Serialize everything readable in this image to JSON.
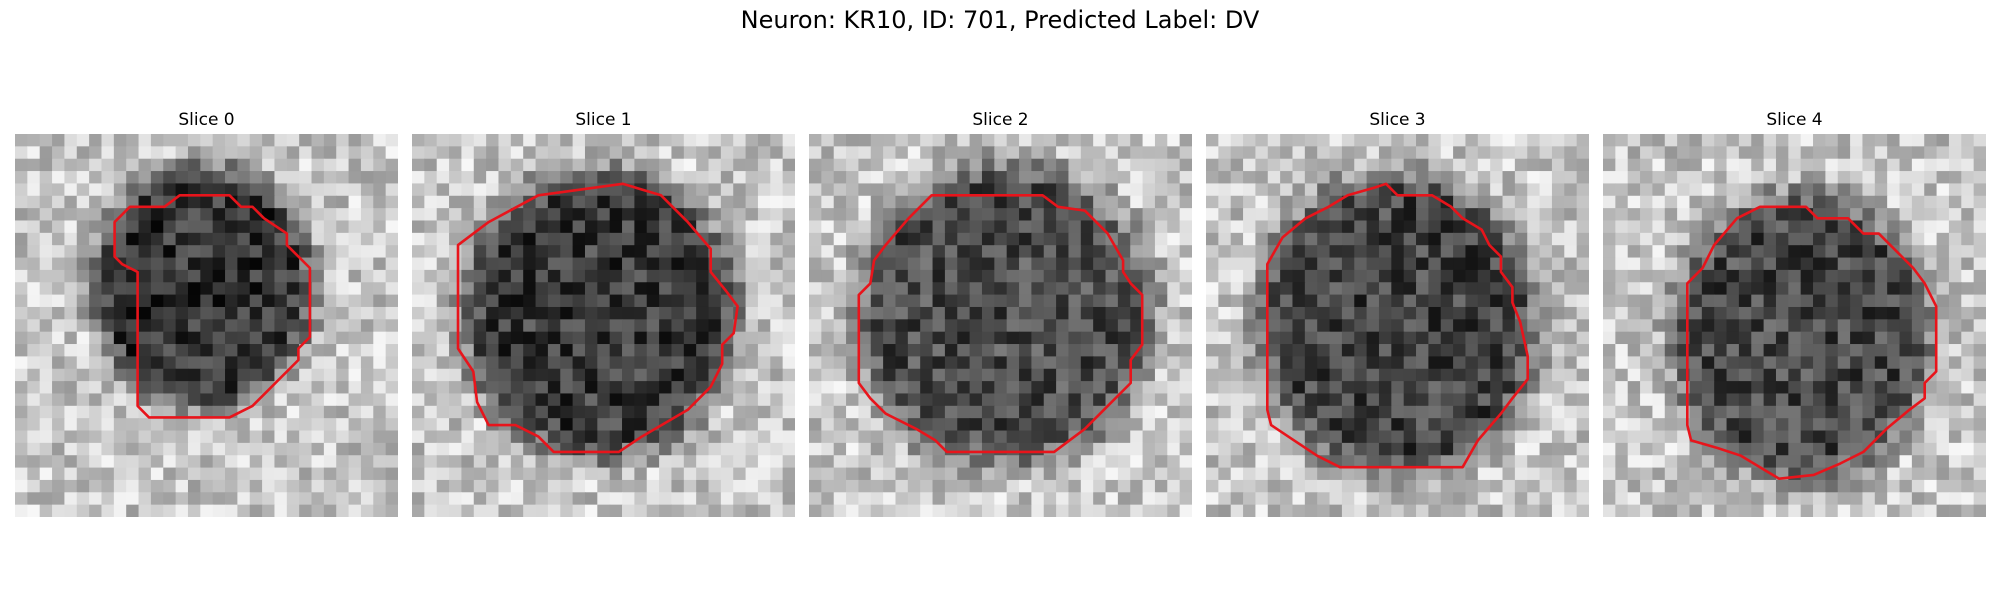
{
  "figure": {
    "title": "Neuron: KR10, ID: 701, Predicted Label: DV"
  },
  "colors": {
    "contour": "#e8141b",
    "background": "#ffffff"
  },
  "panels": [
    {
      "title": "Slice 0",
      "seed": 11,
      "center": [
        0.49,
        0.4
      ],
      "radius": [
        0.29,
        0.32
      ],
      "darkness": 0.58,
      "contour": [
        [
          0.43,
          0.16
        ],
        [
          0.56,
          0.16
        ],
        [
          0.59,
          0.19
        ],
        [
          0.62,
          0.19
        ],
        [
          0.65,
          0.22
        ],
        [
          0.71,
          0.26
        ],
        [
          0.71,
          0.29
        ],
        [
          0.77,
          0.35
        ],
        [
          0.77,
          0.53
        ],
        [
          0.74,
          0.56
        ],
        [
          0.74,
          0.59
        ],
        [
          0.65,
          0.68
        ],
        [
          0.62,
          0.71
        ],
        [
          0.56,
          0.74
        ],
        [
          0.35,
          0.74
        ],
        [
          0.32,
          0.71
        ],
        [
          0.32,
          0.36
        ],
        [
          0.28,
          0.34
        ],
        [
          0.26,
          0.32
        ],
        [
          0.26,
          0.23
        ],
        [
          0.3,
          0.19
        ],
        [
          0.39,
          0.19
        ]
      ]
    },
    {
      "title": "Slice 1",
      "seed": 23,
      "center": [
        0.49,
        0.47
      ],
      "radius": [
        0.36,
        0.38
      ],
      "darkness": 0.55,
      "contour": [
        [
          0.33,
          0.16
        ],
        [
          0.55,
          0.13
        ],
        [
          0.65,
          0.16
        ],
        [
          0.72,
          0.23
        ],
        [
          0.78,
          0.3
        ],
        [
          0.78,
          0.36
        ],
        [
          0.82,
          0.41
        ],
        [
          0.85,
          0.45
        ],
        [
          0.84,
          0.52
        ],
        [
          0.81,
          0.55
        ],
        [
          0.81,
          0.6
        ],
        [
          0.78,
          0.66
        ],
        [
          0.72,
          0.72
        ],
        [
          0.6,
          0.79
        ],
        [
          0.54,
          0.83
        ],
        [
          0.37,
          0.83
        ],
        [
          0.33,
          0.79
        ],
        [
          0.27,
          0.76
        ],
        [
          0.2,
          0.76
        ],
        [
          0.17,
          0.7
        ],
        [
          0.16,
          0.62
        ],
        [
          0.12,
          0.56
        ],
        [
          0.12,
          0.29
        ],
        [
          0.2,
          0.23
        ]
      ]
    },
    {
      "title": "Slice 2",
      "seed": 37,
      "center": [
        0.51,
        0.47
      ],
      "radius": [
        0.39,
        0.4
      ],
      "darkness": 0.48,
      "contour": [
        [
          0.32,
          0.16
        ],
        [
          0.61,
          0.16
        ],
        [
          0.65,
          0.19
        ],
        [
          0.72,
          0.2
        ],
        [
          0.78,
          0.26
        ],
        [
          0.82,
          0.33
        ],
        [
          0.82,
          0.36
        ],
        [
          0.84,
          0.39
        ],
        [
          0.87,
          0.42
        ],
        [
          0.87,
          0.55
        ],
        [
          0.84,
          0.59
        ],
        [
          0.84,
          0.65
        ],
        [
          0.75,
          0.74
        ],
        [
          0.72,
          0.77
        ],
        [
          0.64,
          0.83
        ],
        [
          0.36,
          0.83
        ],
        [
          0.33,
          0.8
        ],
        [
          0.28,
          0.77
        ],
        [
          0.2,
          0.73
        ],
        [
          0.16,
          0.69
        ],
        [
          0.13,
          0.65
        ],
        [
          0.13,
          0.42
        ],
        [
          0.16,
          0.39
        ],
        [
          0.17,
          0.33
        ],
        [
          0.2,
          0.29
        ],
        [
          0.26,
          0.22
        ]
      ]
    },
    {
      "title": "Slice 3",
      "seed": 51,
      "center": [
        0.5,
        0.5
      ],
      "radius": [
        0.37,
        0.4
      ],
      "darkness": 0.52,
      "contour": [
        [
          0.37,
          0.16
        ],
        [
          0.44,
          0.14
        ],
        [
          0.47,
          0.13
        ],
        [
          0.5,
          0.16
        ],
        [
          0.59,
          0.16
        ],
        [
          0.64,
          0.19
        ],
        [
          0.67,
          0.22
        ],
        [
          0.72,
          0.25
        ],
        [
          0.74,
          0.29
        ],
        [
          0.77,
          0.32
        ],
        [
          0.77,
          0.36
        ],
        [
          0.8,
          0.4
        ],
        [
          0.8,
          0.44
        ],
        [
          0.82,
          0.49
        ],
        [
          0.84,
          0.58
        ],
        [
          0.84,
          0.64
        ],
        [
          0.8,
          0.69
        ],
        [
          0.77,
          0.73
        ],
        [
          0.71,
          0.8
        ],
        [
          0.67,
          0.87
        ],
        [
          0.35,
          0.87
        ],
        [
          0.29,
          0.84
        ],
        [
          0.23,
          0.8
        ],
        [
          0.17,
          0.76
        ],
        [
          0.16,
          0.72
        ],
        [
          0.16,
          0.34
        ],
        [
          0.2,
          0.27
        ],
        [
          0.26,
          0.22
        ],
        [
          0.32,
          0.19
        ]
      ]
    },
    {
      "title": "Slice 4",
      "seed": 67,
      "center": [
        0.52,
        0.53
      ],
      "radius": [
        0.34,
        0.38
      ],
      "darkness": 0.5,
      "contour": [
        [
          0.35,
          0.22
        ],
        [
          0.41,
          0.19
        ],
        [
          0.53,
          0.19
        ],
        [
          0.56,
          0.22
        ],
        [
          0.64,
          0.22
        ],
        [
          0.68,
          0.26
        ],
        [
          0.72,
          0.26
        ],
        [
          0.77,
          0.31
        ],
        [
          0.81,
          0.35
        ],
        [
          0.84,
          0.39
        ],
        [
          0.87,
          0.45
        ],
        [
          0.87,
          0.62
        ],
        [
          0.84,
          0.65
        ],
        [
          0.84,
          0.69
        ],
        [
          0.8,
          0.72
        ],
        [
          0.74,
          0.77
        ],
        [
          0.68,
          0.83
        ],
        [
          0.62,
          0.86
        ],
        [
          0.55,
          0.89
        ],
        [
          0.46,
          0.9
        ],
        [
          0.41,
          0.87
        ],
        [
          0.36,
          0.84
        ],
        [
          0.3,
          0.82
        ],
        [
          0.23,
          0.8
        ],
        [
          0.22,
          0.76
        ],
        [
          0.22,
          0.39
        ],
        [
          0.26,
          0.35
        ],
        [
          0.29,
          0.29
        ]
      ]
    }
  ]
}
